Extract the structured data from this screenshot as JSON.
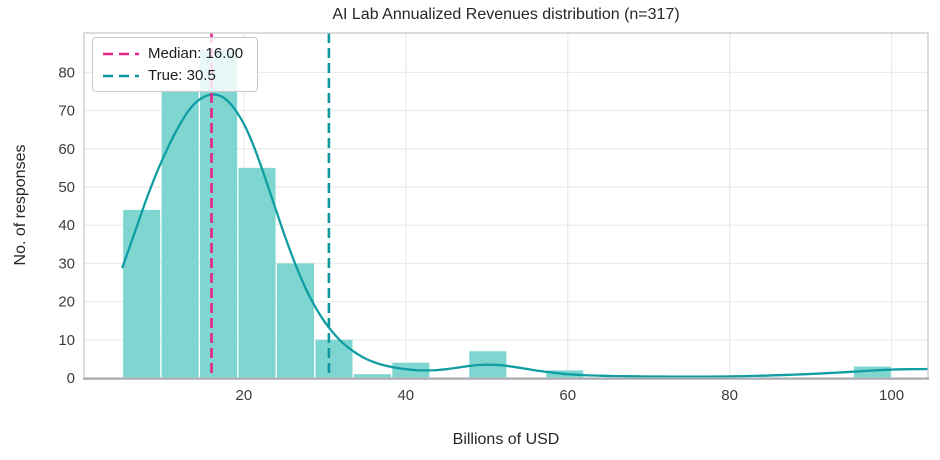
{
  "chart_data": {
    "type": "bar",
    "subtype": "histogram-with-kde",
    "title": "AI Lab Annualized Revenues distribution (n=317)",
    "xlabel": "Billions of USD",
    "ylabel": "No. of responses",
    "n_responses": 317,
    "bin_edges": [
      5,
      9.75,
      14.5,
      19.25,
      24,
      28.75,
      33.5,
      38.25,
      43,
      47.75,
      52.5,
      57.25,
      62,
      66.75,
      71.5,
      76.25,
      81,
      85.75,
      90.5,
      95.25,
      100
    ],
    "counts": [
      44,
      75,
      86,
      55,
      30,
      10,
      1,
      4,
      0,
      7,
      0,
      2,
      0,
      0,
      0,
      0,
      0,
      0,
      0,
      3
    ],
    "kde_curve": {
      "x": [
        5,
        6,
        7,
        8,
        9,
        10,
        11,
        12,
        13,
        14,
        15,
        16,
        17,
        18,
        19,
        20,
        21,
        22,
        23,
        24,
        25,
        26,
        27,
        28,
        29,
        30,
        31,
        32,
        33,
        34,
        35,
        36,
        37,
        38,
        39,
        40,
        41,
        42,
        43,
        44,
        45,
        46,
        47,
        48,
        49,
        50,
        51,
        52,
        53,
        54,
        55,
        56,
        57,
        58,
        59,
        60,
        62,
        64,
        66,
        68,
        70,
        72,
        74,
        76,
        78,
        80,
        82,
        84,
        86,
        88,
        90,
        92,
        94,
        96,
        98,
        100,
        102,
        104.4
      ],
      "y": [
        29,
        35,
        41,
        47,
        52.5,
        57.5,
        62,
        66,
        69.5,
        72,
        73.5,
        74.2,
        73.9,
        72.5,
        70,
        66.5,
        61.8,
        56.2,
        50,
        43.7,
        37.5,
        31.7,
        26.4,
        21.8,
        17.9,
        14.6,
        11.9,
        9.6,
        7.8,
        6.3,
        5.1,
        4.2,
        3.5,
        3,
        2.6,
        2.3,
        2.1,
        2,
        2,
        2.1,
        2.3,
        2.6,
        2.9,
        3.2,
        3.4,
        3.5,
        3.45,
        3.3,
        3,
        2.7,
        2.35,
        2,
        1.7,
        1.45,
        1.2,
        1,
        0.75,
        0.6,
        0.5,
        0.45,
        0.4,
        0.38,
        0.36,
        0.36,
        0.38,
        0.42,
        0.5,
        0.6,
        0.72,
        0.88,
        1.05,
        1.25,
        1.5,
        1.75,
        2,
        2.2,
        2.3,
        2.35
      ]
    },
    "annotations": {
      "median": {
        "label": "Median: 16.00",
        "x": 16
      },
      "true_value": {
        "label": "True: 30.5",
        "x": 30.5
      }
    },
    "x_ticks": [
      20,
      40,
      60,
      80,
      100
    ],
    "y_ticks": [
      0,
      10,
      20,
      30,
      40,
      50,
      60,
      70,
      80
    ],
    "xlim": [
      0.25,
      104.5
    ],
    "ylim": [
      0,
      90.3
    ],
    "grid": true,
    "legend_position": "upper-left",
    "colors": {
      "bar": "#7fd6d1",
      "kde": "#109da3",
      "median": "#e9228c",
      "true_line": "#0d98a1",
      "grid": "#e9ebec",
      "spine": "#c7cacc",
      "spine_bottom": "#a7acb0",
      "tick_text": "#3d3d3d"
    }
  }
}
